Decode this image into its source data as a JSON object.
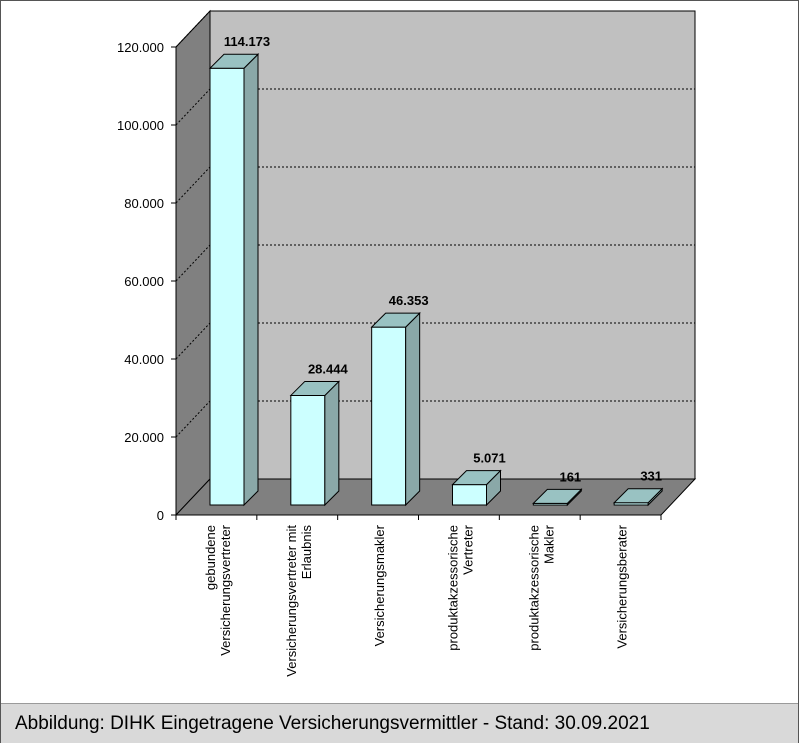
{
  "caption": "Abbildung: DIHK Eingetragene Versicherungsvermittler - Stand: 30.09.2021",
  "colors": {
    "back_wall": "#c0c0c0",
    "side_wall": "#808080",
    "floor": "#808080",
    "bar_front": "#ccffff",
    "bar_top": "#99c2c2",
    "bar_side": "#8aa8a8",
    "grid": "#000000"
  },
  "chart_data": {
    "type": "bar",
    "style": "3d",
    "categories": [
      [
        "gebundene",
        "Versicherungsvertreter"
      ],
      [
        "Versicherungsvertreter mit",
        "Erlaubnis"
      ],
      [
        "Versicherungsmakler"
      ],
      [
        "produktakzessorische",
        "Vertreter"
      ],
      [
        "produktakzessorische",
        "Makler"
      ],
      [
        "Versicherungsberater"
      ]
    ],
    "values": [
      114173,
      28444,
      46353,
      5071,
      161,
      331
    ],
    "value_labels": [
      "114.173",
      "28.444",
      "46.353",
      "5.071",
      "161",
      "331"
    ],
    "yticks": [
      0,
      20000,
      40000,
      60000,
      80000,
      100000,
      120000
    ],
    "ytick_labels": [
      "0",
      "20.000",
      "40.000",
      "60.000",
      "80.000",
      "100.000",
      "120.000"
    ],
    "ylim": [
      0,
      120000
    ],
    "grid": true
  }
}
